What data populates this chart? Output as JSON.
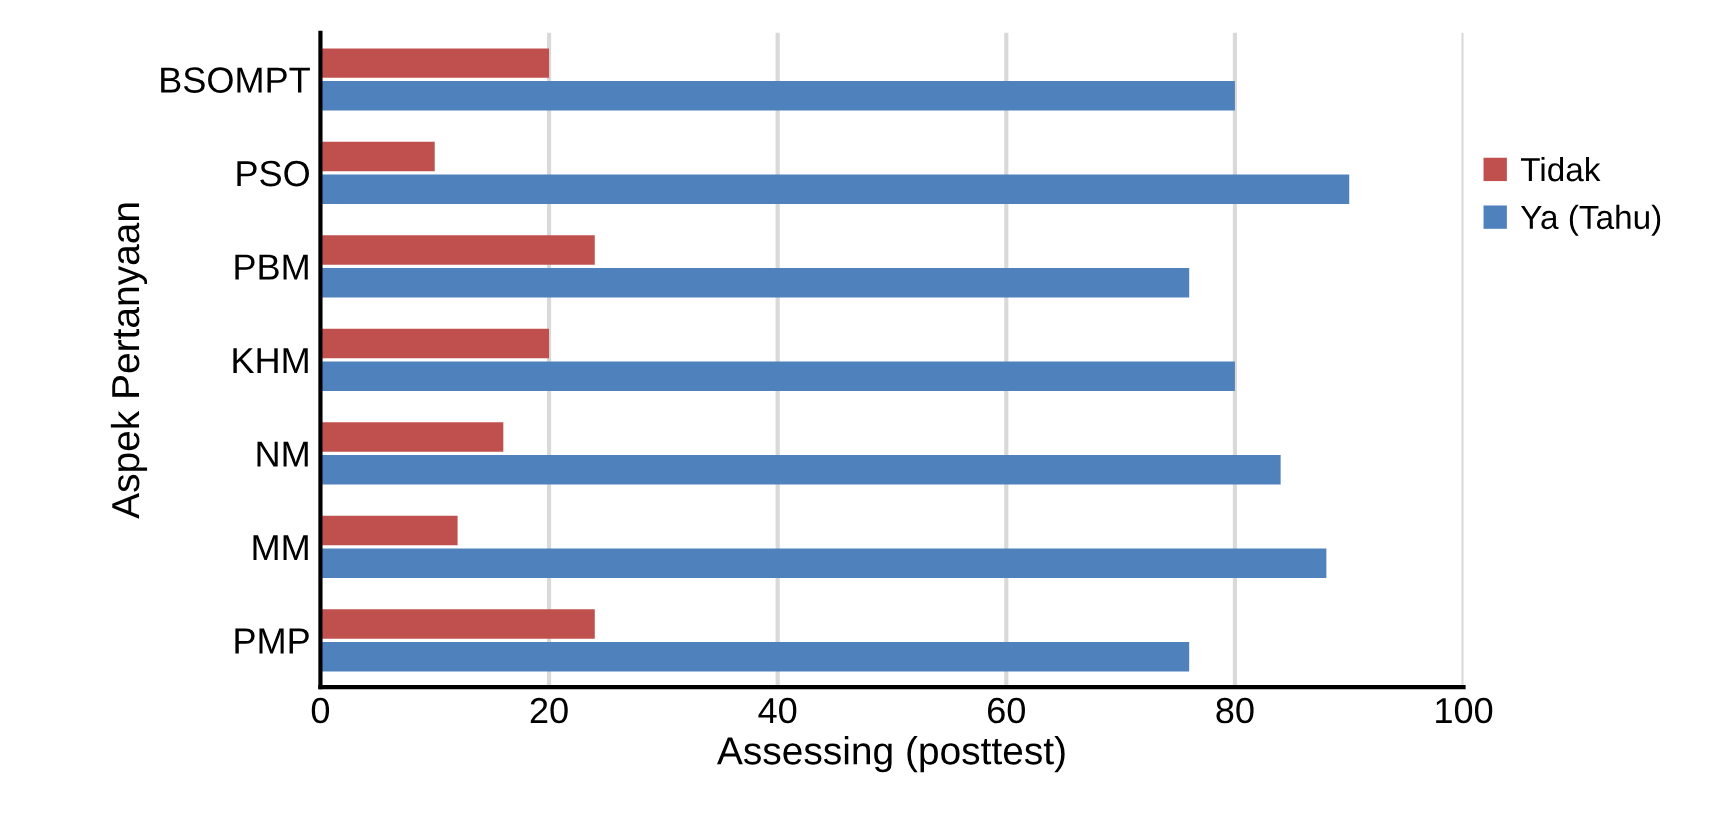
{
  "chart_data": {
    "type": "bar",
    "orientation": "horizontal",
    "xlabel": "Assessing (posttest)",
    "ylabel": "Aspek Pertanyaan",
    "categories": [
      "BSOMPT",
      "PSO",
      "PBM",
      "KHM",
      "NM",
      "MM",
      "PMP"
    ],
    "series": [
      {
        "name": "Tidak",
        "color": "#c0504d",
        "values": [
          20,
          10,
          24,
          20,
          16,
          12,
          24
        ]
      },
      {
        "name": "Ya (Tahu)",
        "color": "#4f81bd",
        "values": [
          80,
          90,
          76,
          80,
          84,
          88,
          76
        ]
      }
    ],
    "xlim": [
      0,
      100
    ],
    "xticks": [
      0,
      20,
      40,
      60,
      80,
      100
    ],
    "grid": "x",
    "legend": "right"
  }
}
